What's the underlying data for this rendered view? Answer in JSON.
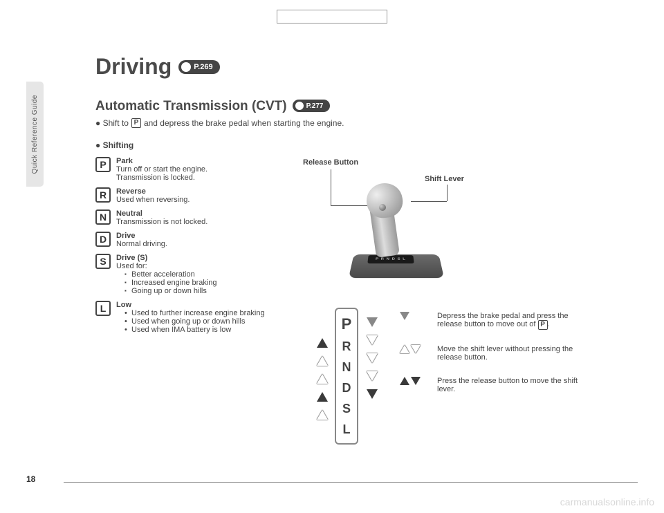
{
  "page_number": "18",
  "side_tab": "Quick Reference Guide",
  "title": "Driving",
  "title_badge": "P.269",
  "section_title": "Automatic Transmission (CVT)",
  "section_badge": "P.277",
  "intro_prefix": "● Shift to ",
  "intro_gear": "P",
  "intro_suffix": " and depress the brake pedal when starting the engine.",
  "shifting_head": "● Shifting",
  "gears": [
    {
      "sym": "P",
      "title": "Park",
      "lines": [
        "Turn off or start the engine.",
        "Transmission is locked."
      ]
    },
    {
      "sym": "R",
      "title": "Reverse",
      "lines": [
        "Used when reversing."
      ]
    },
    {
      "sym": "N",
      "title": "Neutral",
      "lines": [
        "Transmission is not locked."
      ]
    },
    {
      "sym": "D",
      "title": "Drive",
      "lines": [
        "Normal driving."
      ]
    },
    {
      "sym": "S",
      "title": "Drive (S)",
      "lines": [
        "Used for:"
      ],
      "sq": [
        "Better acceleration",
        "Increased engine braking",
        "Going up or down hills"
      ]
    },
    {
      "sym": "L",
      "title": "Low",
      "bul": [
        "Used to further increase engine braking",
        "Used when going up or down hills",
        "Used when IMA battery is low"
      ]
    }
  ],
  "lbl_release": "Release Button",
  "lbl_shift": "Shift Lever",
  "strip": [
    "P",
    "R",
    "N",
    "D",
    "S",
    "L"
  ],
  "legend": [
    {
      "text_a": "Depress the brake pedal and press the release button to move out of ",
      "gear": "P",
      "text_b": "."
    },
    {
      "text_a": "Move the shift lever without pressing the release button."
    },
    {
      "text_a": "Press the release button to move the shift lever."
    }
  ],
  "watermark": "carmanualsonline.info"
}
